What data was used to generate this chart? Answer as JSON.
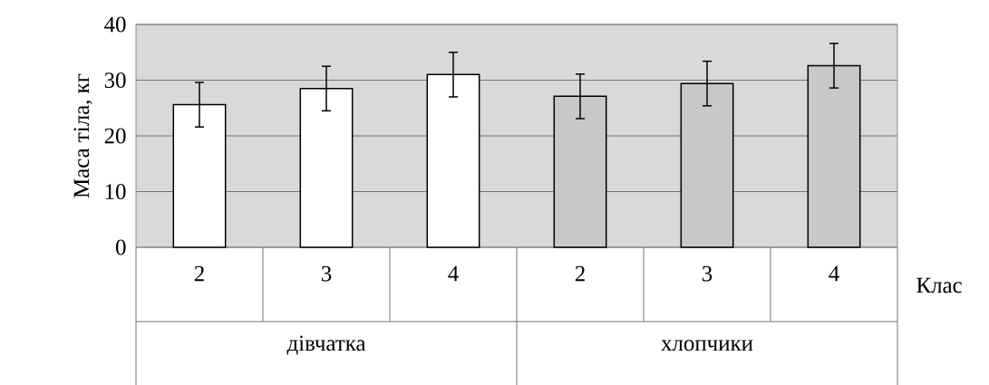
{
  "chart_data": {
    "type": "bar",
    "ylabel": "Маса тіла, кг",
    "xlabel": "Клас",
    "categories": [
      "2",
      "3",
      "4",
      "2",
      "3",
      "4"
    ],
    "values": [
      25.6,
      28.5,
      31.0,
      27.1,
      29.4,
      32.6
    ],
    "errors": [
      4,
      4,
      4,
      4,
      4,
      4
    ],
    "colors": [
      "#ffffff",
      "#ffffff",
      "#ffffff",
      "#c8c8c8",
      "#c8c8c8",
      "#c8c8c8"
    ],
    "annotations": [
      "дівчатка",
      "хлопчики"
    ],
    "ylim": [
      0,
      40
    ],
    "yticks": [
      0,
      10,
      20,
      30,
      40
    ],
    "grid": "y"
  }
}
